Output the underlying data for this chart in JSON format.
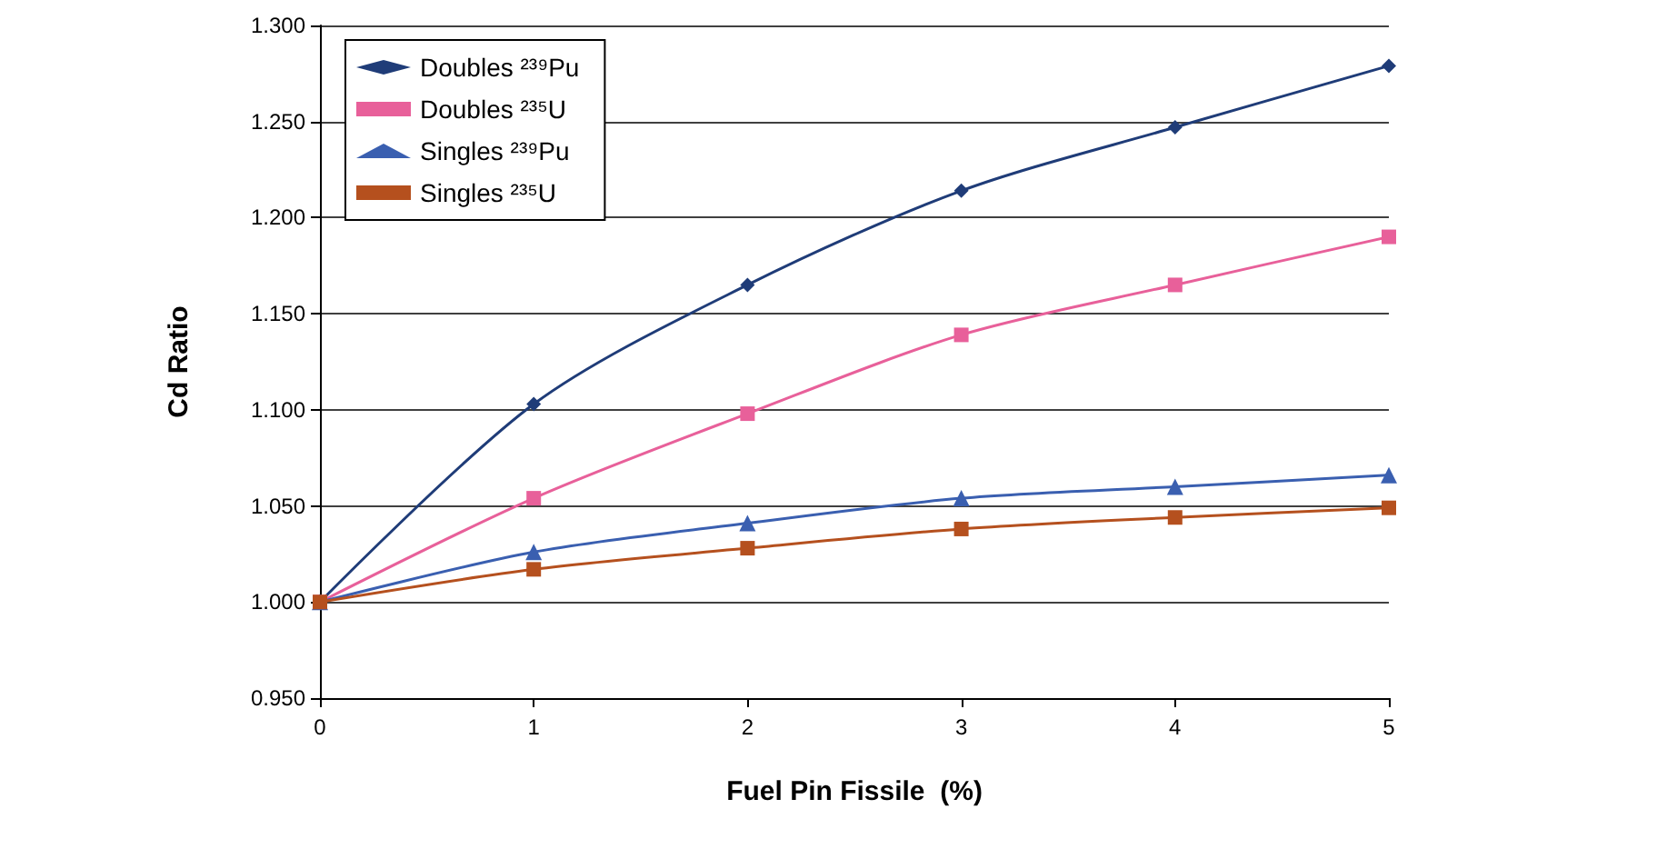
{
  "chart_data": {
    "type": "line",
    "xlabel": "Fuel Pin Fissile  (%)",
    "ylabel": "Cd Ratio",
    "x": [
      0,
      1,
      2,
      3,
      4,
      5
    ],
    "series": [
      {
        "name": "Doubles ²³⁹Pu",
        "color": "#1f3c78",
        "marker": "diamond",
        "values": [
          1.0,
          1.103,
          1.165,
          1.214,
          1.247,
          1.279
        ]
      },
      {
        "name": "Doubles ²³⁵U",
        "color": "#e8609a",
        "marker": "square",
        "values": [
          1.0,
          1.054,
          1.098,
          1.139,
          1.165,
          1.19
        ]
      },
      {
        "name": "Singles ²³⁹Pu",
        "color": "#3a5fb0",
        "marker": "triangle",
        "values": [
          1.0,
          1.026,
          1.041,
          1.054,
          1.06,
          1.066
        ]
      },
      {
        "name": "Singles ²³⁵U",
        "color": "#b5501e",
        "marker": "square",
        "values": [
          1.0,
          1.017,
          1.028,
          1.038,
          1.044,
          1.049
        ]
      }
    ],
    "xlim": [
      0,
      5
    ],
    "xticks": [
      0,
      1,
      2,
      3,
      4,
      5
    ],
    "ylim": [
      0.95,
      1.3
    ],
    "yticks": [
      {
        "value": 0.95,
        "label": "0.950"
      },
      {
        "value": 1.0,
        "label": "1.000"
      },
      {
        "value": 1.05,
        "label": "1.050"
      },
      {
        "value": 1.1,
        "label": "1.100"
      },
      {
        "value": 1.15,
        "label": "1.150"
      },
      {
        "value": 1.2,
        "label": "1.200"
      },
      {
        "value": 1.25,
        "label": "1.250"
      },
      {
        "value": 1.3,
        "label": "1.300"
      }
    ],
    "grid": "y",
    "legend": "top left",
    "line_style": "solid"
  }
}
